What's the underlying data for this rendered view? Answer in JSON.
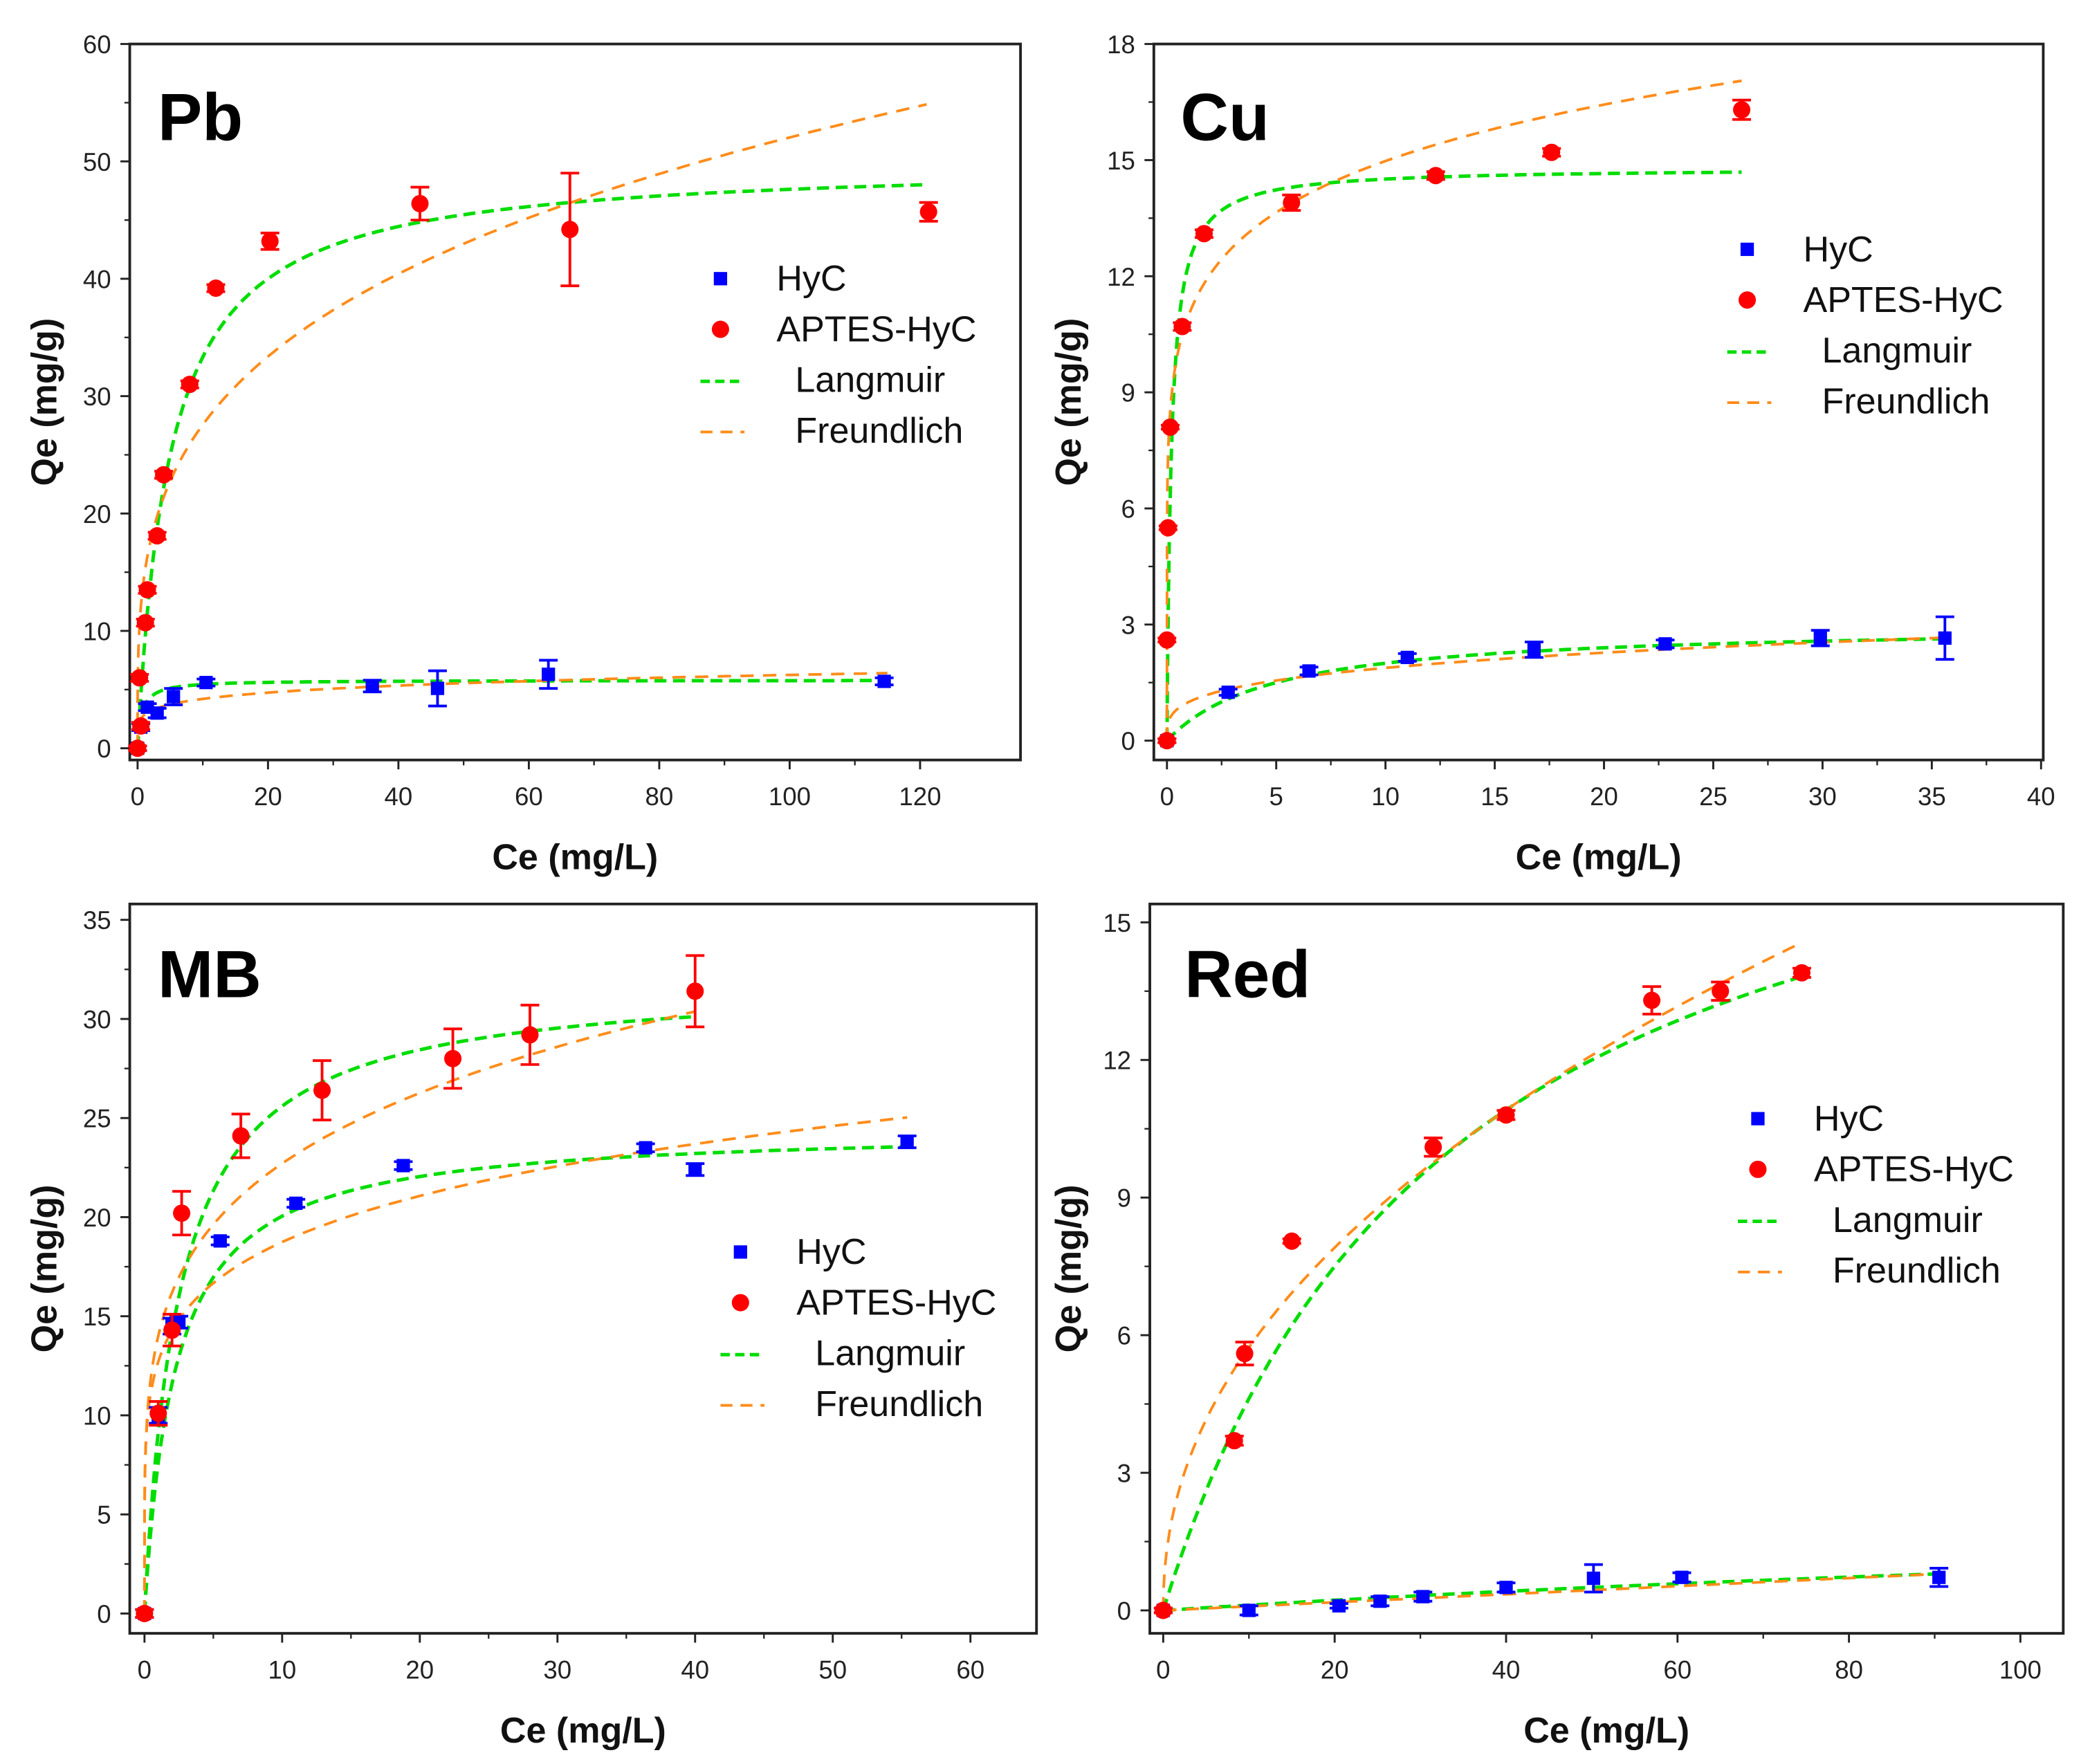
{
  "chart_data": [
    {
      "type": "scatter",
      "title": "Pb",
      "xlabel": "Ce (mg/L)",
      "ylabel": "Qe (mg/g)",
      "xlim": [
        -1.2,
        135.4
      ],
      "ylim": [
        -1,
        60
      ],
      "xticks": [
        0,
        20,
        40,
        60,
        80,
        100,
        120
      ],
      "yticks": [
        0,
        10,
        20,
        30,
        40,
        50,
        60
      ],
      "legend_position": "center-right",
      "legend": [
        "HyC",
        "APTES-HyC",
        "Langmuir",
        "Freundlich"
      ],
      "series": [
        {
          "name": "HyC",
          "marker": "square",
          "color": "#0000ff",
          "x": [
            0,
            0.5,
            1.5,
            3,
            5.5,
            10.5,
            36,
            46,
            63,
            114.5
          ],
          "y": [
            0,
            1.8,
            3.5,
            3,
            4.4,
            5.6,
            5.3,
            5.1,
            6.3,
            5.7
          ],
          "err": [
            0.2,
            0.3,
            0.3,
            0.4,
            0.7,
            0.3,
            0.5,
            1.5,
            1.2,
            0.3
          ]
        },
        {
          "name": "APTES-HyC",
          "marker": "circle",
          "color": "#ff0000",
          "x": [
            0,
            0.5,
            0.3,
            1.2,
            1.5,
            3,
            4,
            8,
            12,
            20.3,
            43.3,
            66.3,
            121.3
          ],
          "y": [
            0,
            1.9,
            6,
            10.7,
            13.5,
            18.1,
            23.3,
            31,
            39.2,
            43.2,
            46.4,
            44.2,
            45.7
          ],
          "err": [
            0.2,
            0.3,
            0.3,
            0.3,
            0.3,
            0.3,
            0.3,
            0.3,
            0.3,
            0.7,
            1.4,
            4.8,
            0.8
          ]
        }
      ],
      "fits": [
        {
          "name": "Langmuir",
          "of": "APTES-HyC",
          "model": "langmuir",
          "qm": 50,
          "K": 0.2,
          "xmax": 121,
          "color": "#00dd00"
        },
        {
          "name": "Freundlich",
          "of": "APTES-HyC",
          "model": "freundlich",
          "K": 14.6,
          "inv_n": 0.276,
          "xmax": 121,
          "color": "#ff8c1a"
        },
        {
          "name": "Langmuir",
          "of": "HyC",
          "model": "langmuir",
          "qm": 5.8,
          "K": 1.5,
          "xmax": 115,
          "color": "#00dd00"
        },
        {
          "name": "Freundlich",
          "of": "HyC",
          "model": "freundlich",
          "K": 2.83,
          "inv_n": 0.172,
          "xmax": 115,
          "color": "#ff8c1a"
        }
      ]
    },
    {
      "type": "scatter",
      "title": "Cu",
      "xlabel": "Ce (mg/L)",
      "ylabel": "Qe (mg/g)",
      "xlim": [
        -0.6,
        40.1
      ],
      "ylim": [
        -0.5,
        18
      ],
      "xticks": [
        0,
        5,
        10,
        15,
        20,
        25,
        30,
        35,
        40
      ],
      "yticks": [
        0,
        3,
        6,
        9,
        12,
        15,
        18
      ],
      "legend_position": "center-right",
      "legend": [
        "HyC",
        "APTES-HyC",
        "Langmuir",
        "Freundlich"
      ],
      "series": [
        {
          "name": "HyC",
          "marker": "square",
          "color": "#0000ff",
          "x": [
            0,
            2.8,
            6.5,
            11,
            16.8,
            22.8,
            29.9,
            35.6
          ],
          "y": [
            0,
            1.25,
            1.8,
            2.15,
            2.35,
            2.5,
            2.65,
            2.65
          ],
          "err": [
            0.05,
            0.08,
            0.1,
            0.1,
            0.2,
            0.1,
            0.2,
            0.55
          ]
        },
        {
          "name": "APTES-HyC",
          "marker": "circle",
          "color": "#ff0000",
          "x": [
            0,
            0,
            0.05,
            0.15,
            0.7,
            1.7,
            5.7,
            12.3,
            17.6,
            26.3
          ],
          "y": [
            0,
            2.6,
            5.5,
            8.1,
            10.7,
            13.1,
            13.9,
            14.6,
            15.2,
            16.3
          ],
          "err": [
            0.05,
            0.05,
            0.05,
            0.05,
            0.1,
            0.1,
            0.2,
            0.1,
            0.1,
            0.25
          ]
        }
      ],
      "fits": [
        {
          "name": "Langmuir",
          "of": "APTES-HyC",
          "model": "langmuir",
          "qm": 14.8,
          "K": 5,
          "xmax": 26.3,
          "color": "#00dd00"
        },
        {
          "name": "Freundlich",
          "of": "APTES-HyC",
          "model": "freundlich",
          "K": 11,
          "inv_n": 0.134,
          "xmax": 26.3,
          "color": "#ff8c1a"
        },
        {
          "name": "Langmuir",
          "of": "HyC",
          "model": "langmuir",
          "qm": 3.0,
          "K": 0.2,
          "xmax": 35.6,
          "color": "#00dd00"
        },
        {
          "name": "Freundlich",
          "of": "HyC",
          "model": "freundlich",
          "K": 1.0,
          "inv_n": 0.274,
          "xmax": 35.6,
          "color": "#ff8c1a"
        }
      ]
    },
    {
      "type": "scatter",
      "title": "MB",
      "xlabel": "Ce (mg/L)",
      "ylabel": "Qe (mg/g)",
      "xlim": [
        -1.07,
        64.8
      ],
      "ylim": [
        -1,
        35.8
      ],
      "xticks": [
        0,
        10,
        20,
        30,
        40,
        50,
        60
      ],
      "yticks": [
        0,
        5,
        10,
        15,
        20,
        25,
        30,
        35
      ],
      "legend_position": "center-right",
      "legend": [
        "HyC",
        "APTES-HyC",
        "Langmuir",
        "Freundlich"
      ],
      "series": [
        {
          "name": "HyC",
          "marker": "square",
          "color": "#0000ff",
          "x": [
            0,
            1,
            2,
            2.5,
            5.5,
            11,
            18.8,
            36.4,
            40,
            55.4
          ],
          "y": [
            0,
            10,
            14.5,
            14.7,
            18.8,
            20.7,
            22.6,
            23.5,
            22.4,
            23.8
          ],
          "err": [
            0.2,
            0.4,
            0.4,
            0.3,
            0.2,
            0.2,
            0.2,
            0.2,
            0.3,
            0.3
          ]
        },
        {
          "name": "APTES-HyC",
          "marker": "circle",
          "color": "#ff0000",
          "x": [
            0,
            1,
            2,
            2.7,
            7,
            12.9,
            22.4,
            28,
            40
          ],
          "y": [
            0,
            10.1,
            14.3,
            20.2,
            24.1,
            26.4,
            28,
            29.2,
            31.4
          ],
          "err": [
            0.2,
            0.6,
            0.8,
            1.1,
            1.1,
            1.5,
            1.5,
            1.5,
            1.8
          ]
        }
      ],
      "fits": [
        {
          "name": "Langmuir",
          "of": "APTES-HyC",
          "model": "langmuir",
          "qm": 32,
          "K": 0.4,
          "xmax": 40,
          "color": "#00dd00"
        },
        {
          "name": "Freundlich",
          "of": "APTES-HyC",
          "model": "freundlich",
          "K": 14.0,
          "inv_n": 0.21,
          "xmax": 40,
          "color": "#ff8c1a"
        },
        {
          "name": "Langmuir",
          "of": "HyC",
          "model": "langmuir",
          "qm": 24.5,
          "K": 0.45,
          "xmax": 55.4,
          "color": "#00dd00"
        },
        {
          "name": "Freundlich",
          "of": "HyC",
          "model": "freundlich",
          "K": 12.7,
          "inv_n": 0.169,
          "xmax": 55.4,
          "color": "#ff8c1a"
        }
      ]
    },
    {
      "type": "scatter",
      "title": "Red",
      "xlabel": "Ce (mg/L)",
      "ylabel": "Qe (mg/g)",
      "xlim": [
        -1.56,
        105
      ],
      "ylim": [
        -0.5,
        15.4
      ],
      "xticks": [
        0,
        20,
        40,
        60,
        80,
        100
      ],
      "yticks": [
        0,
        3,
        6,
        9,
        12,
        15
      ],
      "legend_position": "center-right",
      "legend": [
        "HyC",
        "APTES-HyC",
        "Langmuir",
        "Freundlich"
      ],
      "series": [
        {
          "name": "HyC",
          "marker": "square",
          "color": "#0000ff",
          "x": [
            0,
            10,
            20.5,
            25.3,
            30.3,
            40,
            50.2,
            60.5,
            90.5
          ],
          "y": [
            0,
            0,
            0.1,
            0.2,
            0.3,
            0.5,
            0.7,
            0.72,
            0.72
          ],
          "err": [
            0.05,
            0.1,
            0.05,
            0.1,
            0.1,
            0.1,
            0.3,
            0.1,
            0.2
          ]
        },
        {
          "name": "APTES-HyC",
          "marker": "circle",
          "color": "#ff0000",
          "x": [
            0,
            8.3,
            9.5,
            15,
            31.5,
            40,
            57,
            65,
            74.5
          ],
          "y": [
            0,
            3.7,
            5.6,
            8.05,
            10.1,
            10.8,
            13.3,
            13.5,
            13.9
          ],
          "err": [
            0.05,
            0.1,
            0.25,
            0.05,
            0.2,
            0.1,
            0.3,
            0.2,
            0.1
          ]
        }
      ],
      "fits": [
        {
          "name": "Langmuir",
          "of": "APTES-HyC",
          "model": "langmuir",
          "qm": 20,
          "K": 0.03,
          "xmax": 74.5,
          "color": "#00dd00"
        },
        {
          "name": "Freundlich",
          "of": "APTES-HyC",
          "model": "freundlich",
          "K": 1.97,
          "inv_n": 0.464,
          "xmax": 74.5,
          "color": "#ff8c1a"
        },
        {
          "name": "Langmuir",
          "of": "HyC",
          "model": "langmuir",
          "qm": 3,
          "K": 0.004,
          "xmax": 91,
          "color": "#00dd00"
        },
        {
          "name": "Freundlich",
          "of": "HyC",
          "model": "freundlich",
          "K": 0.0088,
          "inv_n": 1,
          "xmax": 91,
          "color": "#ff8c1a"
        }
      ]
    }
  ]
}
